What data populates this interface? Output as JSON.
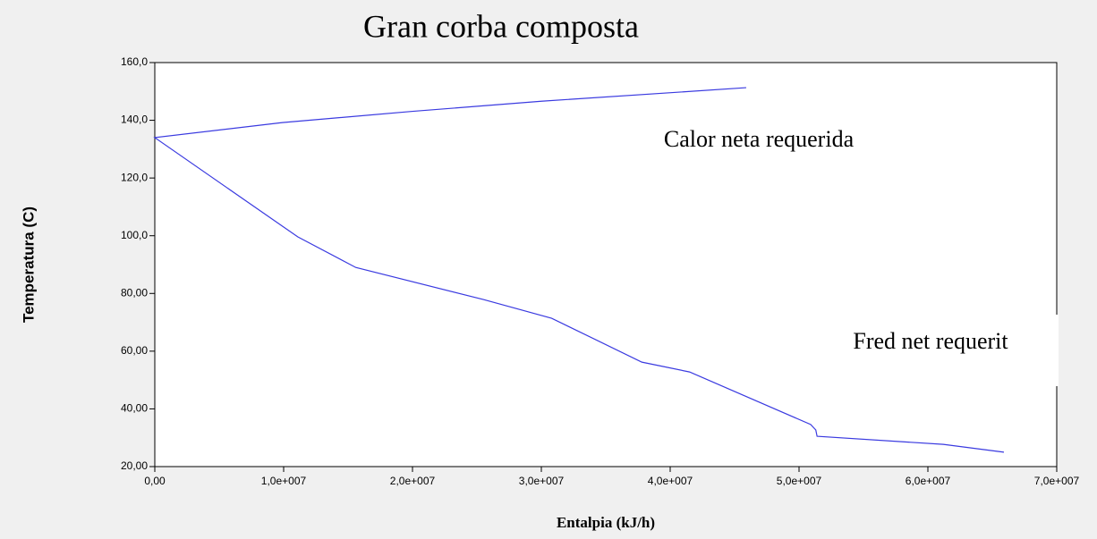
{
  "chart_data": {
    "type": "line",
    "title": "Gran corba composta",
    "x_label": "Entalpia (kJ/h)",
    "y_label": "Temperatura (C)",
    "annotations": [
      "Calor neta requerida",
      "Fred net requerit"
    ],
    "x": [
      45900000,
      30000000,
      20000000,
      9900000,
      0,
      11100000,
      15600000,
      25500000,
      30800000,
      37800000,
      41500000,
      50900000,
      51300000,
      51400000,
      61200000,
      65900000
    ],
    "series": [
      {
        "name": "Gran corba composta",
        "color": "#3a3ae0",
        "values": [
          151.3,
          146.6,
          143.1,
          139.2,
          134,
          99.6,
          89,
          77.9,
          71.4,
          56.2,
          52.8,
          34.6,
          32.7,
          30.5,
          27.7,
          25
        ]
      }
    ],
    "xlim": [
      0,
      70000000
    ],
    "xticks": [
      {
        "value": 0,
        "label": "0,00"
      },
      {
        "value": 10000000,
        "label": "1,0e+007"
      },
      {
        "value": 20000000,
        "label": "2,0e+007"
      },
      {
        "value": 30000000,
        "label": "3,0e+007"
      },
      {
        "value": 40000000,
        "label": "4,0e+007"
      },
      {
        "value": 50000000,
        "label": "5,0e+007"
      },
      {
        "value": 60000000,
        "label": "6,0e+007"
      },
      {
        "value": 70000000,
        "label": "7,0e+007"
      }
    ],
    "ylim": [
      20,
      160
    ],
    "yticks": [
      {
        "value": 20,
        "label": "20,00"
      },
      {
        "value": 40,
        "label": "40,00"
      },
      {
        "value": 60,
        "label": "60,00"
      },
      {
        "value": 80,
        "label": "80,00"
      },
      {
        "value": 100,
        "label": "100,0"
      },
      {
        "value": 120,
        "label": "120,0"
      },
      {
        "value": 140,
        "label": "140,0"
      },
      {
        "value": 160,
        "label": "160,0"
      }
    ],
    "grid": false
  }
}
